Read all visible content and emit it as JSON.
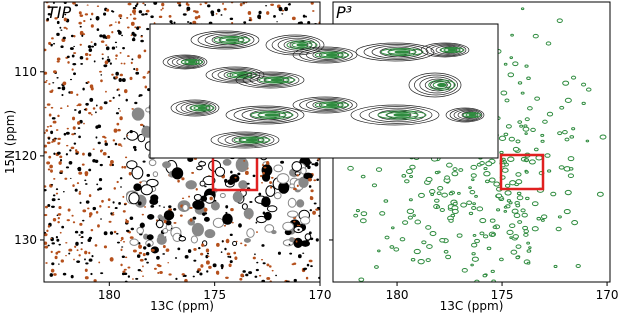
{
  "chart_data": [
    {
      "type": "contour",
      "title": "TIP",
      "xlabel": "13C (ppm)",
      "ylabel": "15N (ppm)",
      "xlim": [
        183.1,
        170
      ],
      "xticks": [
        180,
        175,
        170
      ],
      "ylim": [
        135,
        101.7
      ],
      "yticks": [
        110,
        120,
        130
      ],
      "ytick_labels": true,
      "colors": [
        "#000000",
        "#b5501c",
        "#888888"
      ]
    },
    {
      "type": "contour",
      "title": "P³",
      "xlabel": "13C (ppm)",
      "xlim": [
        183.05,
        169.86
      ],
      "xticks": [
        180,
        175,
        170
      ],
      "ylim": [
        135,
        101.7
      ],
      "yticks": [
        110,
        120,
        130
      ],
      "ytick_labels": false,
      "colors": [
        "#2e8b3e"
      ]
    }
  ]
}
